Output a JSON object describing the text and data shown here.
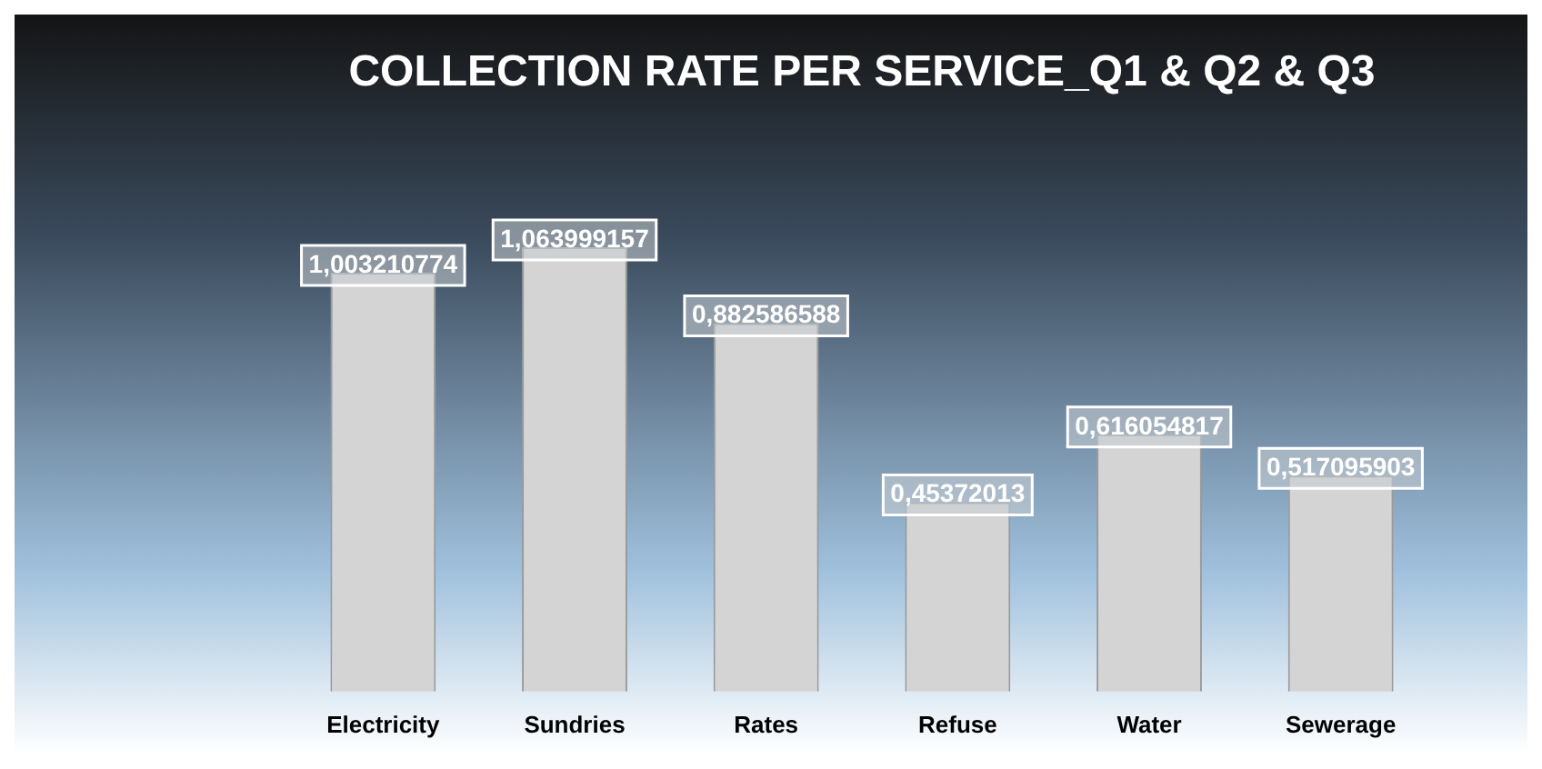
{
  "chart_data": {
    "type": "bar",
    "title": "COLLECTION RATE PER SERVICE_Q1 & Q2 & Q3",
    "categories": [
      "Electricity",
      "Sundries",
      "Rates",
      "Refuse",
      "Water",
      "Sewerage"
    ],
    "values": [
      1.003210774,
      1.063999157,
      0.882586588,
      0.45372013,
      0.616054817,
      0.517095903
    ],
    "value_labels": [
      "1,003210774",
      "1,063999157",
      "0,882586588",
      "0,45372013",
      "0,616054817",
      "0,517095903"
    ],
    "color": "#d4d4d4",
    "grid": false,
    "legend": false
  }
}
